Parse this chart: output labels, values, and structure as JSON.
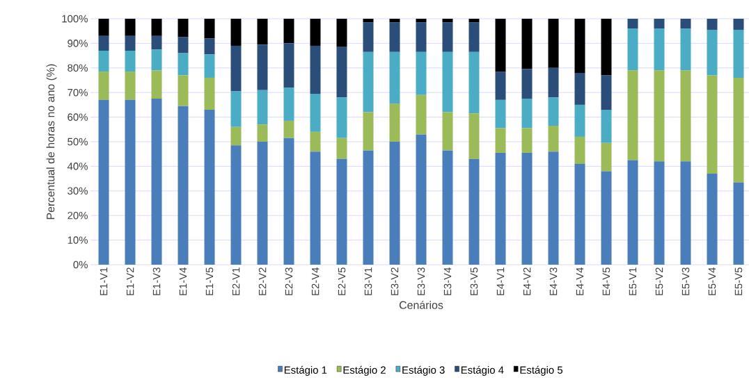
{
  "chart_data": {
    "type": "bar",
    "stacked": true,
    "xlabel": "Cenários",
    "ylabel": "Percentual de horas no ano (%)",
    "categories": [
      "E1-V1",
      "E1-V2",
      "E1-V3",
      "E1-V4",
      "E1-V5",
      "E2-V1",
      "E2-V2",
      "E2-V3",
      "E2-V4",
      "E2-V5",
      "E3-V1",
      "E3-V2",
      "E3-V3",
      "E3-V4",
      "E3-V5",
      "E4-V1",
      "E4-V2",
      "E4-V3",
      "E4-V4",
      "E4-V5",
      "E5-V1",
      "E5-V2",
      "E5-V3",
      "E5-V4",
      "E5-V5"
    ],
    "series": [
      {
        "name": "Estágio 1",
        "color": "#4a7ebb",
        "values": [
          67,
          67,
          67.5,
          64.5,
          63,
          48.5,
          50,
          51.5,
          46,
          43,
          46.5,
          50,
          53,
          46.5,
          43,
          45.5,
          45.5,
          46,
          41,
          38,
          42.5,
          42,
          42,
          37,
          33.5
        ]
      },
      {
        "name": "Estágio 2",
        "color": "#9bbb59",
        "values": [
          11.5,
          11.5,
          11.5,
          12.5,
          13,
          7.5,
          7,
          7,
          8,
          8.5,
          15.5,
          15.5,
          16,
          15.5,
          18.5,
          10,
          10,
          10.5,
          11,
          11.5,
          36.5,
          37,
          37,
          40,
          42.5
        ]
      },
      {
        "name": "Estágio 3",
        "color": "#4bacc6",
        "values": [
          8.5,
          8.5,
          8.5,
          9,
          9.5,
          14.5,
          14,
          13.5,
          15.5,
          16.5,
          24.5,
          21,
          17.5,
          24.5,
          25,
          11.5,
          12,
          11.5,
          13,
          13.5,
          17,
          17,
          17,
          18.5,
          19.5
        ]
      },
      {
        "name": "Estágio 4",
        "color": "#2a4d7a",
        "values": [
          6,
          6,
          5.5,
          6.5,
          6.5,
          18.5,
          18.5,
          18,
          19.5,
          20.5,
          12,
          12,
          12,
          12,
          12,
          11.5,
          12,
          12,
          13,
          14,
          4,
          4,
          4,
          4.5,
          4.5
        ]
      },
      {
        "name": "Estágio 5",
        "color": "#000000",
        "values": [
          7,
          7,
          7,
          7.5,
          8,
          11,
          10.5,
          10,
          11,
          11.5,
          1.5,
          1.5,
          1.5,
          1.5,
          1.5,
          21.5,
          20.5,
          20,
          22,
          23,
          0,
          0,
          0,
          0,
          0
        ]
      }
    ],
    "ylim": [
      0,
      100
    ],
    "yticks": [
      {
        "value": 0,
        "label": "0%"
      },
      {
        "value": 10,
        "label": "10%"
      },
      {
        "value": 20,
        "label": "20%"
      },
      {
        "value": 30,
        "label": "30%"
      },
      {
        "value": 40,
        "label": "40%"
      },
      {
        "value": 50,
        "label": "50%"
      },
      {
        "value": 60,
        "label": "60%"
      },
      {
        "value": 70,
        "label": "70%"
      },
      {
        "value": 80,
        "label": "80%"
      },
      {
        "value": 90,
        "label": "90%"
      },
      {
        "value": 100,
        "label": "100%"
      }
    ],
    "grid": "y",
    "legend": "bottom"
  }
}
